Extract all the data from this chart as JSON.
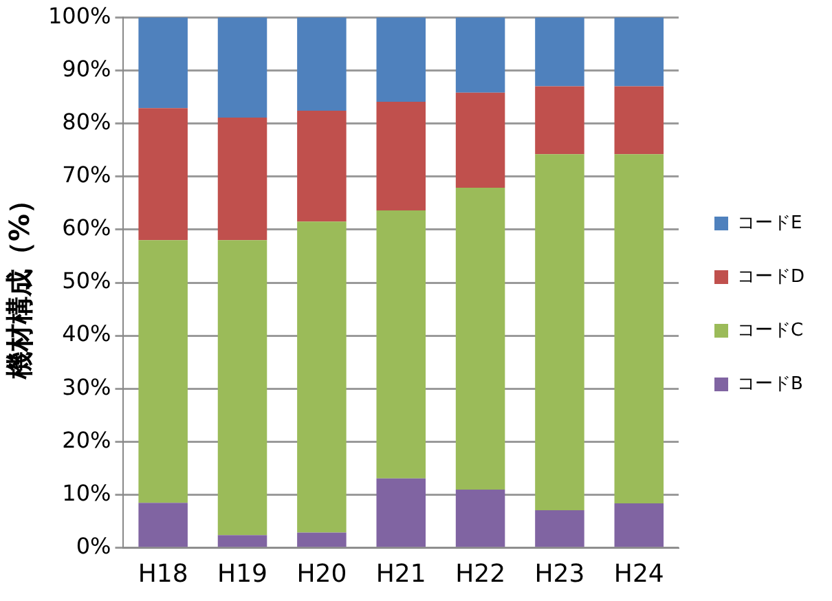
{
  "chart_data": {
    "type": "bar",
    "stacked": true,
    "ylabel": "機材構成（%）",
    "categories": [
      "H18",
      "H19",
      "H20",
      "H21",
      "H22",
      "H23",
      "H24"
    ],
    "series": [
      {
        "name": "コードB",
        "color": "#8064a2",
        "values": [
          8.5,
          2.4,
          2.9,
          13.1,
          11.0,
          7.1,
          8.4
        ]
      },
      {
        "name": "コードC",
        "color": "#9bbb59",
        "values": [
          49.5,
          55.6,
          58.6,
          50.5,
          56.9,
          67.1,
          65.8
        ]
      },
      {
        "name": "コードD",
        "color": "#c0504d",
        "values": [
          24.9,
          23.1,
          20.9,
          20.5,
          17.9,
          12.8,
          12.8
        ]
      },
      {
        "name": "コードE",
        "color": "#4f81bd",
        "values": [
          17.1,
          18.9,
          17.6,
          15.9,
          14.2,
          13.0,
          13.0
        ]
      }
    ],
    "ylim": [
      0,
      100
    ],
    "yticks": [
      {
        "value": 0,
        "label": "0%"
      },
      {
        "value": 10,
        "label": "10%"
      },
      {
        "value": 20,
        "label": "20%"
      },
      {
        "value": 30,
        "label": "30%"
      },
      {
        "value": 40,
        "label": "40%"
      },
      {
        "value": 50,
        "label": "50%"
      },
      {
        "value": 60,
        "label": "60%"
      },
      {
        "value": 70,
        "label": "70%"
      },
      {
        "value": 80,
        "label": "80%"
      },
      {
        "value": 90,
        "label": "90%"
      },
      {
        "value": 100,
        "label": "100%"
      }
    ],
    "grid": "y",
    "legend": "right"
  }
}
